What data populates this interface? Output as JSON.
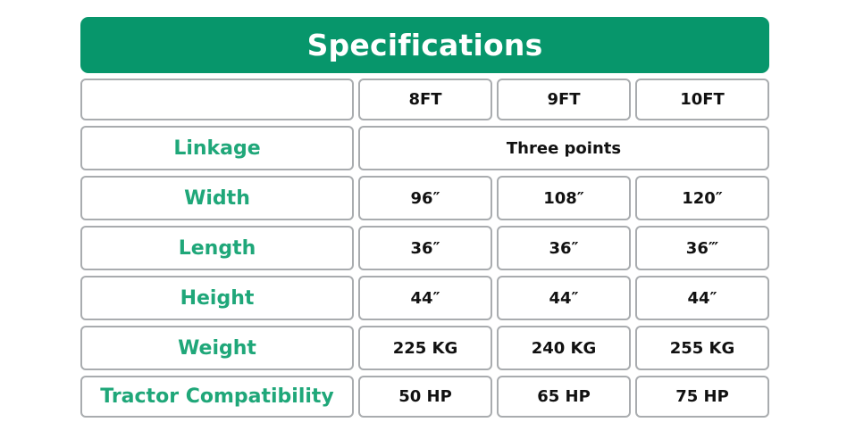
{
  "title": "Specifications",
  "columns": [
    "8FT",
    "9FT",
    "10FT"
  ],
  "rows": [
    {
      "label": "Linkage",
      "merged": "Three points"
    },
    {
      "label": "Width",
      "values": [
        "96″",
        "108″",
        "120″"
      ]
    },
    {
      "label": "Length",
      "values": [
        "36″",
        "36″",
        "36‴"
      ]
    },
    {
      "label": "Height",
      "values": [
        "44″",
        "44″",
        "44″"
      ]
    },
    {
      "label": "Weight",
      "values": [
        "225 KG",
        "240 KG",
        "255 KG"
      ]
    },
    {
      "label": "Tractor Compatibility",
      "values": [
        "50 HP",
        "65 HP",
        "75 HP"
      ]
    }
  ],
  "colors": {
    "header_bg": "#07966b",
    "header_text": "#ffffff",
    "row_label": "#1fa779",
    "border": "#a9acaf"
  }
}
